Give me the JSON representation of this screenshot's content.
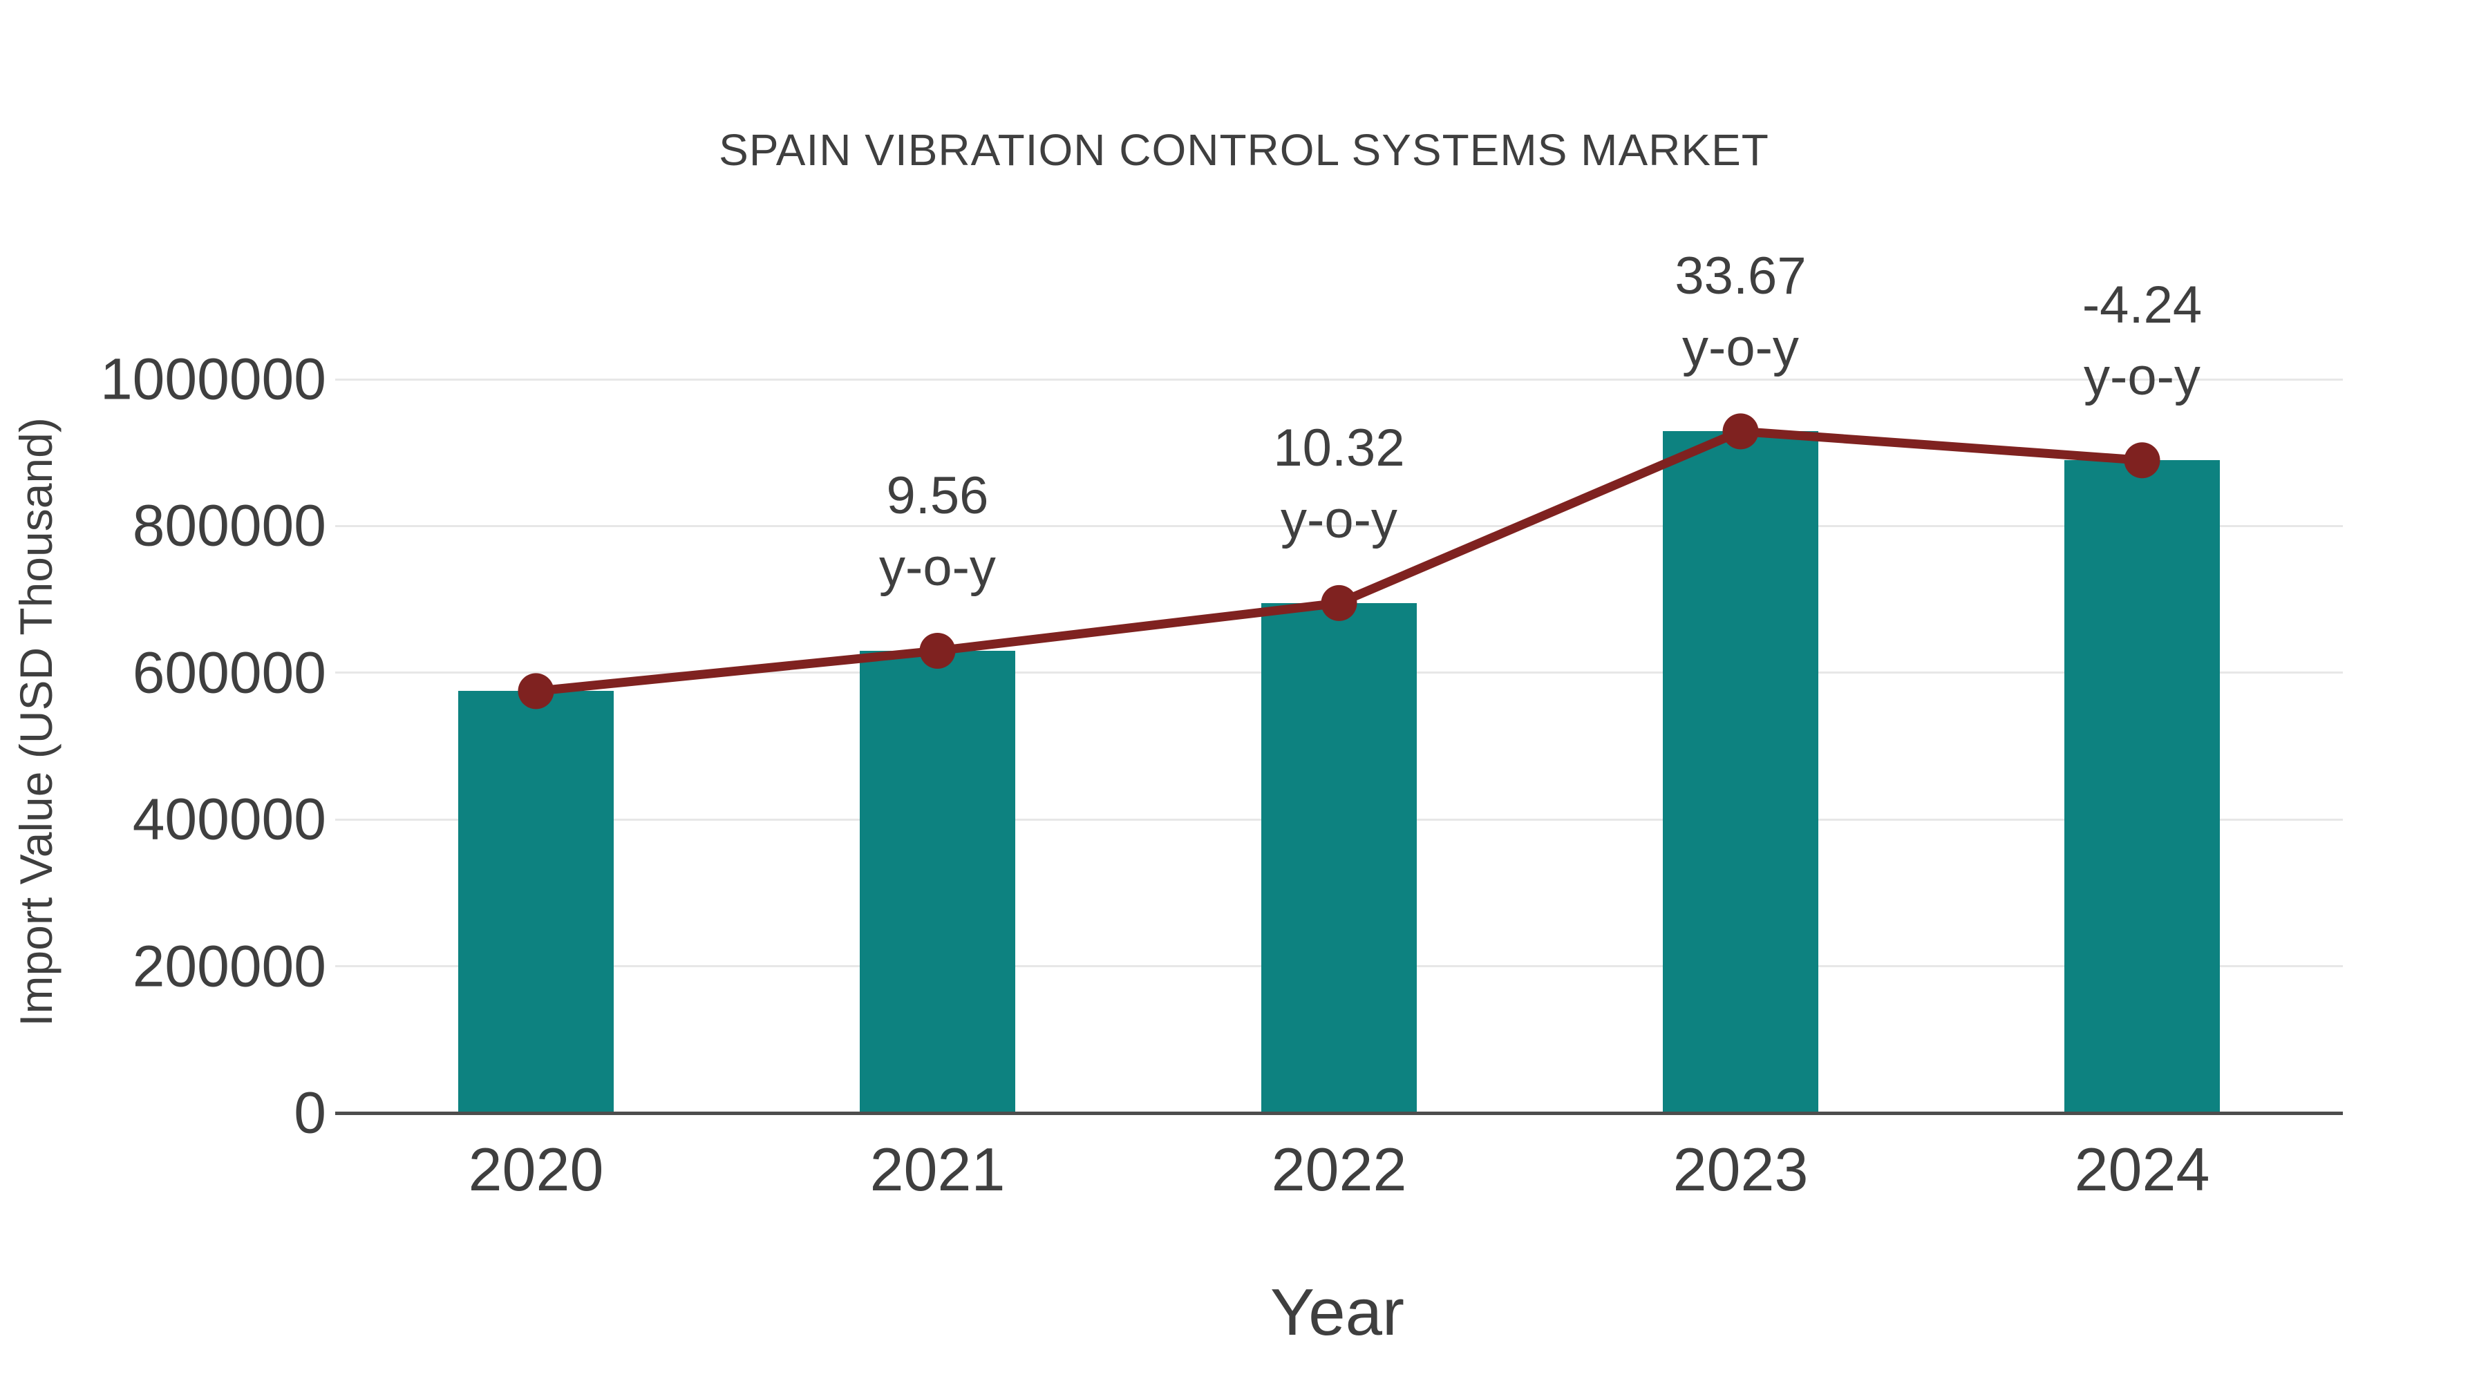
{
  "chart_data": {
    "type": "bar",
    "title": "SPAIN VIBRATION CONTROL SYSTEMS MARKET",
    "xlabel": "Year",
    "ylabel": "Import Value (USD Thousand)",
    "categories": [
      "2020",
      "2021",
      "2022",
      "2023",
      "2024"
    ],
    "series": [
      {
        "name": "Import Value (USD Thousand)",
        "type": "bar",
        "color": "#0d8280",
        "values": [
          575000,
          630000,
          695000,
          929000,
          889600
        ]
      },
      {
        "name": "y-o-y growth",
        "type": "line",
        "color": "#7f2220",
        "values": [
          575000,
          630000,
          695000,
          929000,
          889600
        ],
        "point_labels": [
          null,
          "9.56",
          "10.32",
          "33.67",
          "-4.24"
        ],
        "point_label_suffix": "y-o-y"
      }
    ],
    "annotations": [
      {
        "category": "2021",
        "value": "9.56",
        "suffix": "y-o-y"
      },
      {
        "category": "2022",
        "value": "10.32",
        "suffix": "y-o-y"
      },
      {
        "category": "2023",
        "value": "33.67",
        "suffix": "y-o-y"
      },
      {
        "category": "2024",
        "value": "-4.24",
        "suffix": "y-o-y"
      }
    ],
    "y_ticks": [
      0,
      200000,
      400000,
      600000,
      800000,
      1000000
    ],
    "ylim": [
      0,
      1000000
    ],
    "grid": "horizontal-light",
    "legend_position": "none"
  },
  "colors": {
    "bar": "#0d8280",
    "line": "#7f2220",
    "marker": "#7f2220",
    "text": "#3f3f3f",
    "gridline": "#e7e7e7",
    "axis_line": "#4d4d4d",
    "background": "#ffffff"
  }
}
